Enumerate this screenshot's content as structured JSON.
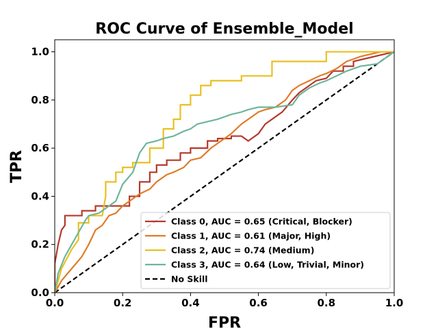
{
  "chart_data": {
    "type": "line",
    "title": "ROC Curve of Ensemble_Model",
    "xlabel": "FPR",
    "ylabel": "TPR",
    "xlim": [
      0.0,
      1.0
    ],
    "ylim": [
      0.0,
      1.05
    ],
    "xticks": [
      "0.0",
      "0.2",
      "0.4",
      "0.6",
      "0.8",
      "1.0"
    ],
    "yticks": [
      "0.0",
      "0.2",
      "0.4",
      "0.6",
      "0.8",
      "1.0"
    ],
    "grid": false,
    "legend_position": "lower-right",
    "series": [
      {
        "name": "Class 0, AUC = 0.65 (Critical, Blocker)",
        "color": "#b5382c",
        "style": "solid",
        "x": [
          0.0,
          0.0,
          0.01,
          0.02,
          0.03,
          0.03,
          0.08,
          0.08,
          0.12,
          0.12,
          0.22,
          0.22,
          0.25,
          0.25,
          0.28,
          0.28,
          0.3,
          0.3,
          0.33,
          0.33,
          0.37,
          0.37,
          0.4,
          0.4,
          0.45,
          0.45,
          0.48,
          0.48,
          0.52,
          0.52,
          0.55,
          0.57,
          0.6,
          0.62,
          0.65,
          0.67,
          0.7,
          0.72,
          0.75,
          0.77,
          0.8,
          0.82,
          0.85,
          0.85,
          0.88,
          0.88,
          1.0
        ],
        "y": [
          0.0,
          0.12,
          0.2,
          0.26,
          0.28,
          0.32,
          0.32,
          0.34,
          0.34,
          0.36,
          0.36,
          0.4,
          0.4,
          0.46,
          0.46,
          0.5,
          0.5,
          0.53,
          0.53,
          0.55,
          0.55,
          0.58,
          0.58,
          0.6,
          0.6,
          0.63,
          0.63,
          0.64,
          0.64,
          0.65,
          0.65,
          0.63,
          0.66,
          0.7,
          0.73,
          0.75,
          0.8,
          0.83,
          0.86,
          0.88,
          0.89,
          0.92,
          0.92,
          0.94,
          0.94,
          0.96,
          1.0
        ]
      },
      {
        "name": "Class 1, AUC = 0.61 (Major, High)",
        "color": "#e07b28",
        "style": "solid",
        "x": [
          0.0,
          0.02,
          0.05,
          0.08,
          0.1,
          0.12,
          0.14,
          0.16,
          0.18,
          0.2,
          0.22,
          0.25,
          0.28,
          0.3,
          0.33,
          0.35,
          0.38,
          0.4,
          0.43,
          0.46,
          0.48,
          0.5,
          0.52,
          0.55,
          0.57,
          0.6,
          0.62,
          0.65,
          0.68,
          0.7,
          0.72,
          0.75,
          0.78,
          0.8,
          0.83,
          0.86,
          0.88,
          0.9,
          0.93,
          0.96,
          1.0
        ],
        "y": [
          0.0,
          0.05,
          0.1,
          0.15,
          0.2,
          0.26,
          0.28,
          0.32,
          0.33,
          0.36,
          0.38,
          0.41,
          0.43,
          0.46,
          0.49,
          0.5,
          0.52,
          0.55,
          0.56,
          0.6,
          0.62,
          0.64,
          0.66,
          0.7,
          0.72,
          0.75,
          0.76,
          0.77,
          0.8,
          0.84,
          0.86,
          0.88,
          0.9,
          0.91,
          0.93,
          0.96,
          0.97,
          0.98,
          0.99,
          1.0,
          1.0
        ]
      },
      {
        "name": "Class 2, AUC = 0.74 (Medium)",
        "color": "#e8c022",
        "style": "solid",
        "x": [
          0.0,
          0.02,
          0.05,
          0.07,
          0.07,
          0.1,
          0.1,
          0.14,
          0.15,
          0.15,
          0.18,
          0.18,
          0.2,
          0.2,
          0.23,
          0.23,
          0.28,
          0.28,
          0.32,
          0.32,
          0.35,
          0.35,
          0.37,
          0.37,
          0.4,
          0.4,
          0.43,
          0.43,
          0.46,
          0.46,
          0.55,
          0.55,
          0.64,
          0.64,
          0.8,
          0.8,
          0.99,
          1.0
        ],
        "y": [
          0.0,
          0.1,
          0.18,
          0.22,
          0.29,
          0.29,
          0.32,
          0.32,
          0.4,
          0.46,
          0.46,
          0.5,
          0.5,
          0.52,
          0.52,
          0.54,
          0.54,
          0.6,
          0.6,
          0.68,
          0.68,
          0.72,
          0.72,
          0.78,
          0.78,
          0.82,
          0.82,
          0.86,
          0.86,
          0.88,
          0.88,
          0.9,
          0.9,
          0.96,
          0.96,
          1.0,
          1.0,
          1.0
        ]
      },
      {
        "name": "Class 3, AUC = 0.64 (Low, Trivial, Minor)",
        "color": "#6fb59b",
        "style": "solid",
        "x": [
          0.0,
          0.01,
          0.03,
          0.05,
          0.07,
          0.09,
          0.1,
          0.13,
          0.15,
          0.18,
          0.2,
          0.23,
          0.25,
          0.27,
          0.3,
          0.32,
          0.35,
          0.38,
          0.4,
          0.42,
          0.45,
          0.48,
          0.5,
          0.52,
          0.55,
          0.57,
          0.6,
          0.65,
          0.7,
          0.72,
          0.75,
          0.78,
          0.8,
          0.83,
          0.86,
          0.88,
          0.9,
          0.95,
          0.98,
          1.0
        ],
        "y": [
          0.0,
          0.08,
          0.15,
          0.2,
          0.25,
          0.3,
          0.32,
          0.33,
          0.35,
          0.38,
          0.45,
          0.5,
          0.58,
          0.62,
          0.63,
          0.64,
          0.65,
          0.67,
          0.68,
          0.7,
          0.71,
          0.72,
          0.73,
          0.74,
          0.75,
          0.76,
          0.77,
          0.77,
          0.78,
          0.82,
          0.85,
          0.87,
          0.88,
          0.9,
          0.92,
          0.93,
          0.94,
          0.95,
          0.98,
          1.0
        ]
      },
      {
        "name": "No Skill",
        "color": "#000000",
        "style": "dashed",
        "x": [
          0.0,
          1.0
        ],
        "y": [
          0.0,
          1.0
        ]
      }
    ]
  }
}
